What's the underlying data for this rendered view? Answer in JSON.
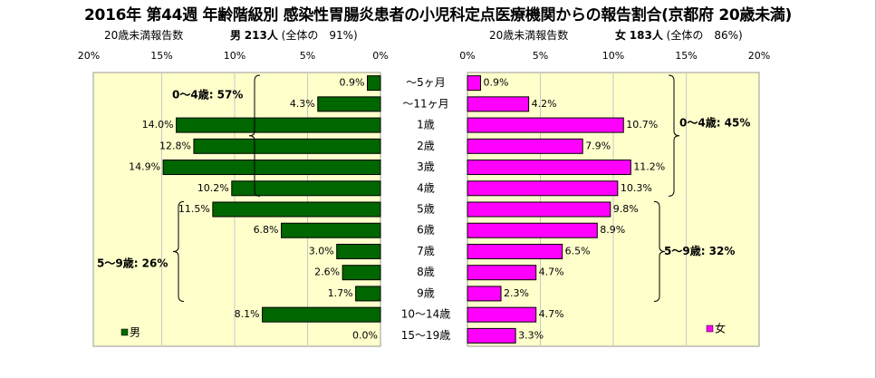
{
  "title": "2016年 第44週 年齢階級別 感染性胃腸炎患者の小児科定点医療機関からの報告割合(京都府 20歳未満)",
  "left_header": {
    "label": "20歳未満報告数",
    "sex": "男",
    "count": "213人",
    "share": "(全体の　91%)"
  },
  "right_header": {
    "label": "20歳未満報告数",
    "sex": "女",
    "count": "183人",
    "share": "(全体の　86%)"
  },
  "colors": {
    "male": "#006600",
    "female": "#ff00ff",
    "panel": "#ffffcc",
    "grid": "#c8c8c8"
  },
  "chart_data": [
    {
      "type": "bar",
      "orientation": "horizontal",
      "direction": "right-to-left",
      "categories": [
        "～5ヶ月",
        "～11ヶ月",
        "1歳",
        "2歳",
        "3歳",
        "4歳",
        "5歳",
        "6歳",
        "7歳",
        "8歳",
        "9歳",
        "10～14歳",
        "15～19歳"
      ],
      "values": [
        0.9,
        4.3,
        14.0,
        12.8,
        14.9,
        10.2,
        11.5,
        6.8,
        3.0,
        2.6,
        1.7,
        8.1,
        0.0
      ],
      "value_labels": [
        "0.9%",
        "4.3%",
        "14.0%",
        "12.8%",
        "14.9%",
        "10.2%",
        "11.5%",
        "6.8%",
        "3.0%",
        "2.6%",
        "1.7%",
        "8.1%",
        "0.0%"
      ],
      "xlim": [
        0,
        20
      ],
      "ticks": [
        "20%",
        "15%",
        "10%",
        "5%",
        "0%"
      ],
      "legend": "男",
      "legend_position": "bottom-left",
      "groups": [
        {
          "label": "0～4歳: 57%",
          "from": 0,
          "to": 5
        },
        {
          "label": "5～9歳: 26%",
          "from": 6,
          "to": 10
        }
      ]
    },
    {
      "type": "bar",
      "orientation": "horizontal",
      "direction": "left-to-right",
      "categories": [
        "～5ヶ月",
        "～11ヶ月",
        "1歳",
        "2歳",
        "3歳",
        "4歳",
        "5歳",
        "6歳",
        "7歳",
        "8歳",
        "9歳",
        "10～14歳",
        "15～19歳"
      ],
      "values": [
        0.9,
        4.2,
        10.7,
        7.9,
        11.2,
        10.3,
        9.8,
        8.9,
        6.5,
        4.7,
        2.3,
        4.7,
        3.3
      ],
      "value_labels": [
        "0.9%",
        "4.2%",
        "10.7%",
        "7.9%",
        "11.2%",
        "10.3%",
        "9.8%",
        "8.9%",
        "6.5%",
        "4.7%",
        "2.3%",
        "4.7%",
        "3.3%"
      ],
      "xlim": [
        0,
        20
      ],
      "ticks": [
        "0%",
        "5%",
        "10%",
        "15%",
        "20%"
      ],
      "legend": "女",
      "legend_position": "bottom-right",
      "groups": [
        {
          "label": "0～4歳: 45%",
          "from": 0,
          "to": 5
        },
        {
          "label": "5～9歳: 32%",
          "from": 6,
          "to": 10
        }
      ]
    }
  ]
}
